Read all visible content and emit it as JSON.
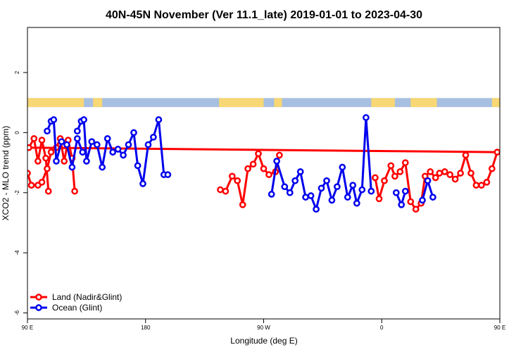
{
  "chart_data": {
    "type": "line",
    "title": "40N-45N November (Ver 11.1_late)   2019-01-01 to 2023-04-30",
    "xlabel": "Longitude (deg E)",
    "ylabel": "XCO2 - MLO trend (ppm)",
    "xlim": [
      90,
      450
    ],
    "ylim": [
      -6.2,
      3.5
    ],
    "x_ticks": [
      {
        "value": 90,
        "label": "90 E"
      },
      {
        "value": 180,
        "label": "180"
      },
      {
        "value": 270,
        "label": "90 W"
      },
      {
        "value": 360,
        "label": "0"
      },
      {
        "value": 450,
        "label": "90 E"
      },
      {
        "value": 540,
        "label": "180"
      }
    ],
    "y_ticks": [
      {
        "value": 2,
        "label": "2"
      },
      {
        "value": 0,
        "label": "0"
      },
      {
        "value": -2,
        "label": "-2"
      },
      {
        "value": -4,
        "label": "-4"
      },
      {
        "value": -6,
        "label": "-6"
      }
    ],
    "grid": false,
    "legend_position": "bottom-left",
    "land_ocean_strip": {
      "y_range": [
        0.85,
        1.15
      ],
      "land_color": "#f8d775",
      "ocean_color": "#a7bfe0",
      "land_ranges": [
        [
          90,
          133
        ],
        [
          144,
          147
        ],
        [
          236,
          270
        ],
        [
          278,
          284
        ],
        [
          352,
          370
        ],
        [
          382,
          402
        ],
        [
          444,
          490
        ],
        [
          500,
          505
        ]
      ]
    },
    "series": [
      {
        "name": "Land (Nadir&Glint)",
        "color": "#ff0000",
        "segments": [
          [
            [
              90,
              -1.35
            ],
            [
              93,
              -1.75
            ],
            [
              98,
              -1.75
            ],
            [
              101,
              -1.65
            ],
            [
              105,
              -1.2
            ],
            [
              108,
              -0.65
            ],
            [
              112,
              -0.5
            ],
            [
              115,
              -0.2
            ],
            [
              118,
              -0.95
            ],
            [
              121,
              -0.25
            ],
            [
              124,
              -0.85
            ],
            [
              126,
              -1.95
            ]
          ],
          [
            [
              237,
              -1.9
            ],
            [
              241,
              -1.95
            ],
            [
              246,
              -1.45
            ],
            [
              250,
              -1.6
            ],
            [
              254,
              -2.4
            ],
            [
              258,
              -1.2
            ],
            [
              262,
              -1.05
            ],
            [
              266,
              -0.7
            ],
            [
              270,
              -1.2
            ],
            [
              274,
              -1.4
            ],
            [
              279,
              -1.3
            ],
            [
              282,
              -0.75
            ]
          ],
          [
            [
              355,
              -1.5
            ],
            [
              358,
              -2.2
            ],
            [
              362,
              -1.6
            ],
            [
              367,
              -1.1
            ],
            [
              370,
              -1.45
            ],
            [
              374,
              -1.3
            ],
            [
              378,
              -1.0
            ],
            [
              382,
              -2.3
            ],
            [
              386,
              -2.55
            ],
            [
              390,
              -2.35
            ],
            [
              393,
              -1.45
            ],
            [
              397,
              -1.3
            ],
            [
              401,
              -1.5
            ],
            [
              404,
              -1.35
            ],
            [
              408,
              -1.3
            ],
            [
              412,
              -1.4
            ],
            [
              416,
              -1.55
            ],
            [
              420,
              -1.35
            ],
            [
              424,
              -0.75
            ],
            [
              428,
              -1.35
            ],
            [
              432,
              -1.75
            ],
            [
              436,
              -1.75
            ],
            [
              440,
              -1.65
            ],
            [
              444,
              -1.2
            ],
            [
              448,
              -0.65
            ],
            [
              451,
              -0.5
            ],
            [
              455,
              -0.2
            ],
            [
              458,
              -0.95
            ],
            [
              461,
              -0.25
            ],
            [
              464,
              -0.85
            ],
            [
              466,
              -1.95
            ]
          ]
        ]
      },
      {
        "name": "Ocean (Glint)",
        "color": "#0000ee",
        "segments": [
          [
            [
              128,
              0.05
            ],
            [
              131,
              0.38
            ],
            [
              133,
              0.43
            ],
            [
              135,
              -0.95
            ],
            [
              139,
              -0.3
            ],
            [
              143,
              -0.4
            ],
            [
              147,
              -1.15
            ],
            [
              151,
              -0.2
            ],
            [
              155,
              -0.65
            ],
            [
              159,
              -0.55
            ],
            [
              163,
              -0.75
            ],
            [
              167,
              -0.4
            ],
            [
              171,
              0.0
            ],
            [
              174,
              -1.1
            ],
            [
              178,
              -1.7
            ],
            [
              182,
              -0.4
            ],
            [
              186,
              -0.15
            ],
            [
              190,
              0.43
            ],
            [
              194,
              -1.4
            ],
            [
              197,
              -1.4
            ]
          ],
          [
            [
              276,
              -2.05
            ],
            [
              280,
              -0.95
            ],
            [
              286,
              -1.8
            ],
            [
              290,
              -2.0
            ],
            [
              294,
              -1.6
            ],
            [
              298,
              -1.3
            ],
            [
              302,
              -2.15
            ],
            [
              306,
              -2.1
            ],
            [
              310,
              -2.55
            ],
            [
              314,
              -1.85
            ],
            [
              318,
              -1.6
            ],
            [
              322,
              -2.25
            ],
            [
              326,
              -1.8
            ],
            [
              330,
              -1.15
            ],
            [
              334,
              -2.15
            ],
            [
              338,
              -1.75
            ],
            [
              341,
              -2.35
            ],
            [
              345,
              -1.9
            ],
            [
              348,
              0.5
            ],
            [
              352,
              -1.95
            ]
          ],
          [
            [
              371,
              -2.0
            ],
            [
              375,
              -2.4
            ],
            [
              378,
              -1.95
            ]
          ],
          [
            [
              391,
              -2.25
            ],
            [
              395,
              -1.6
            ],
            [
              399,
              -2.15
            ]
          ],
          [
            [
              465,
              0.05
            ],
            [
              468,
              0.38
            ],
            [
              470,
              0.43
            ],
            [
              472,
              -0.95
            ],
            [
              476,
              -0.3
            ],
            [
              480,
              -0.4
            ],
            [
              484,
              -1.15
            ],
            [
              488,
              -0.2
            ],
            [
              492,
              -0.65
            ]
          ]
        ]
      }
    ]
  }
}
